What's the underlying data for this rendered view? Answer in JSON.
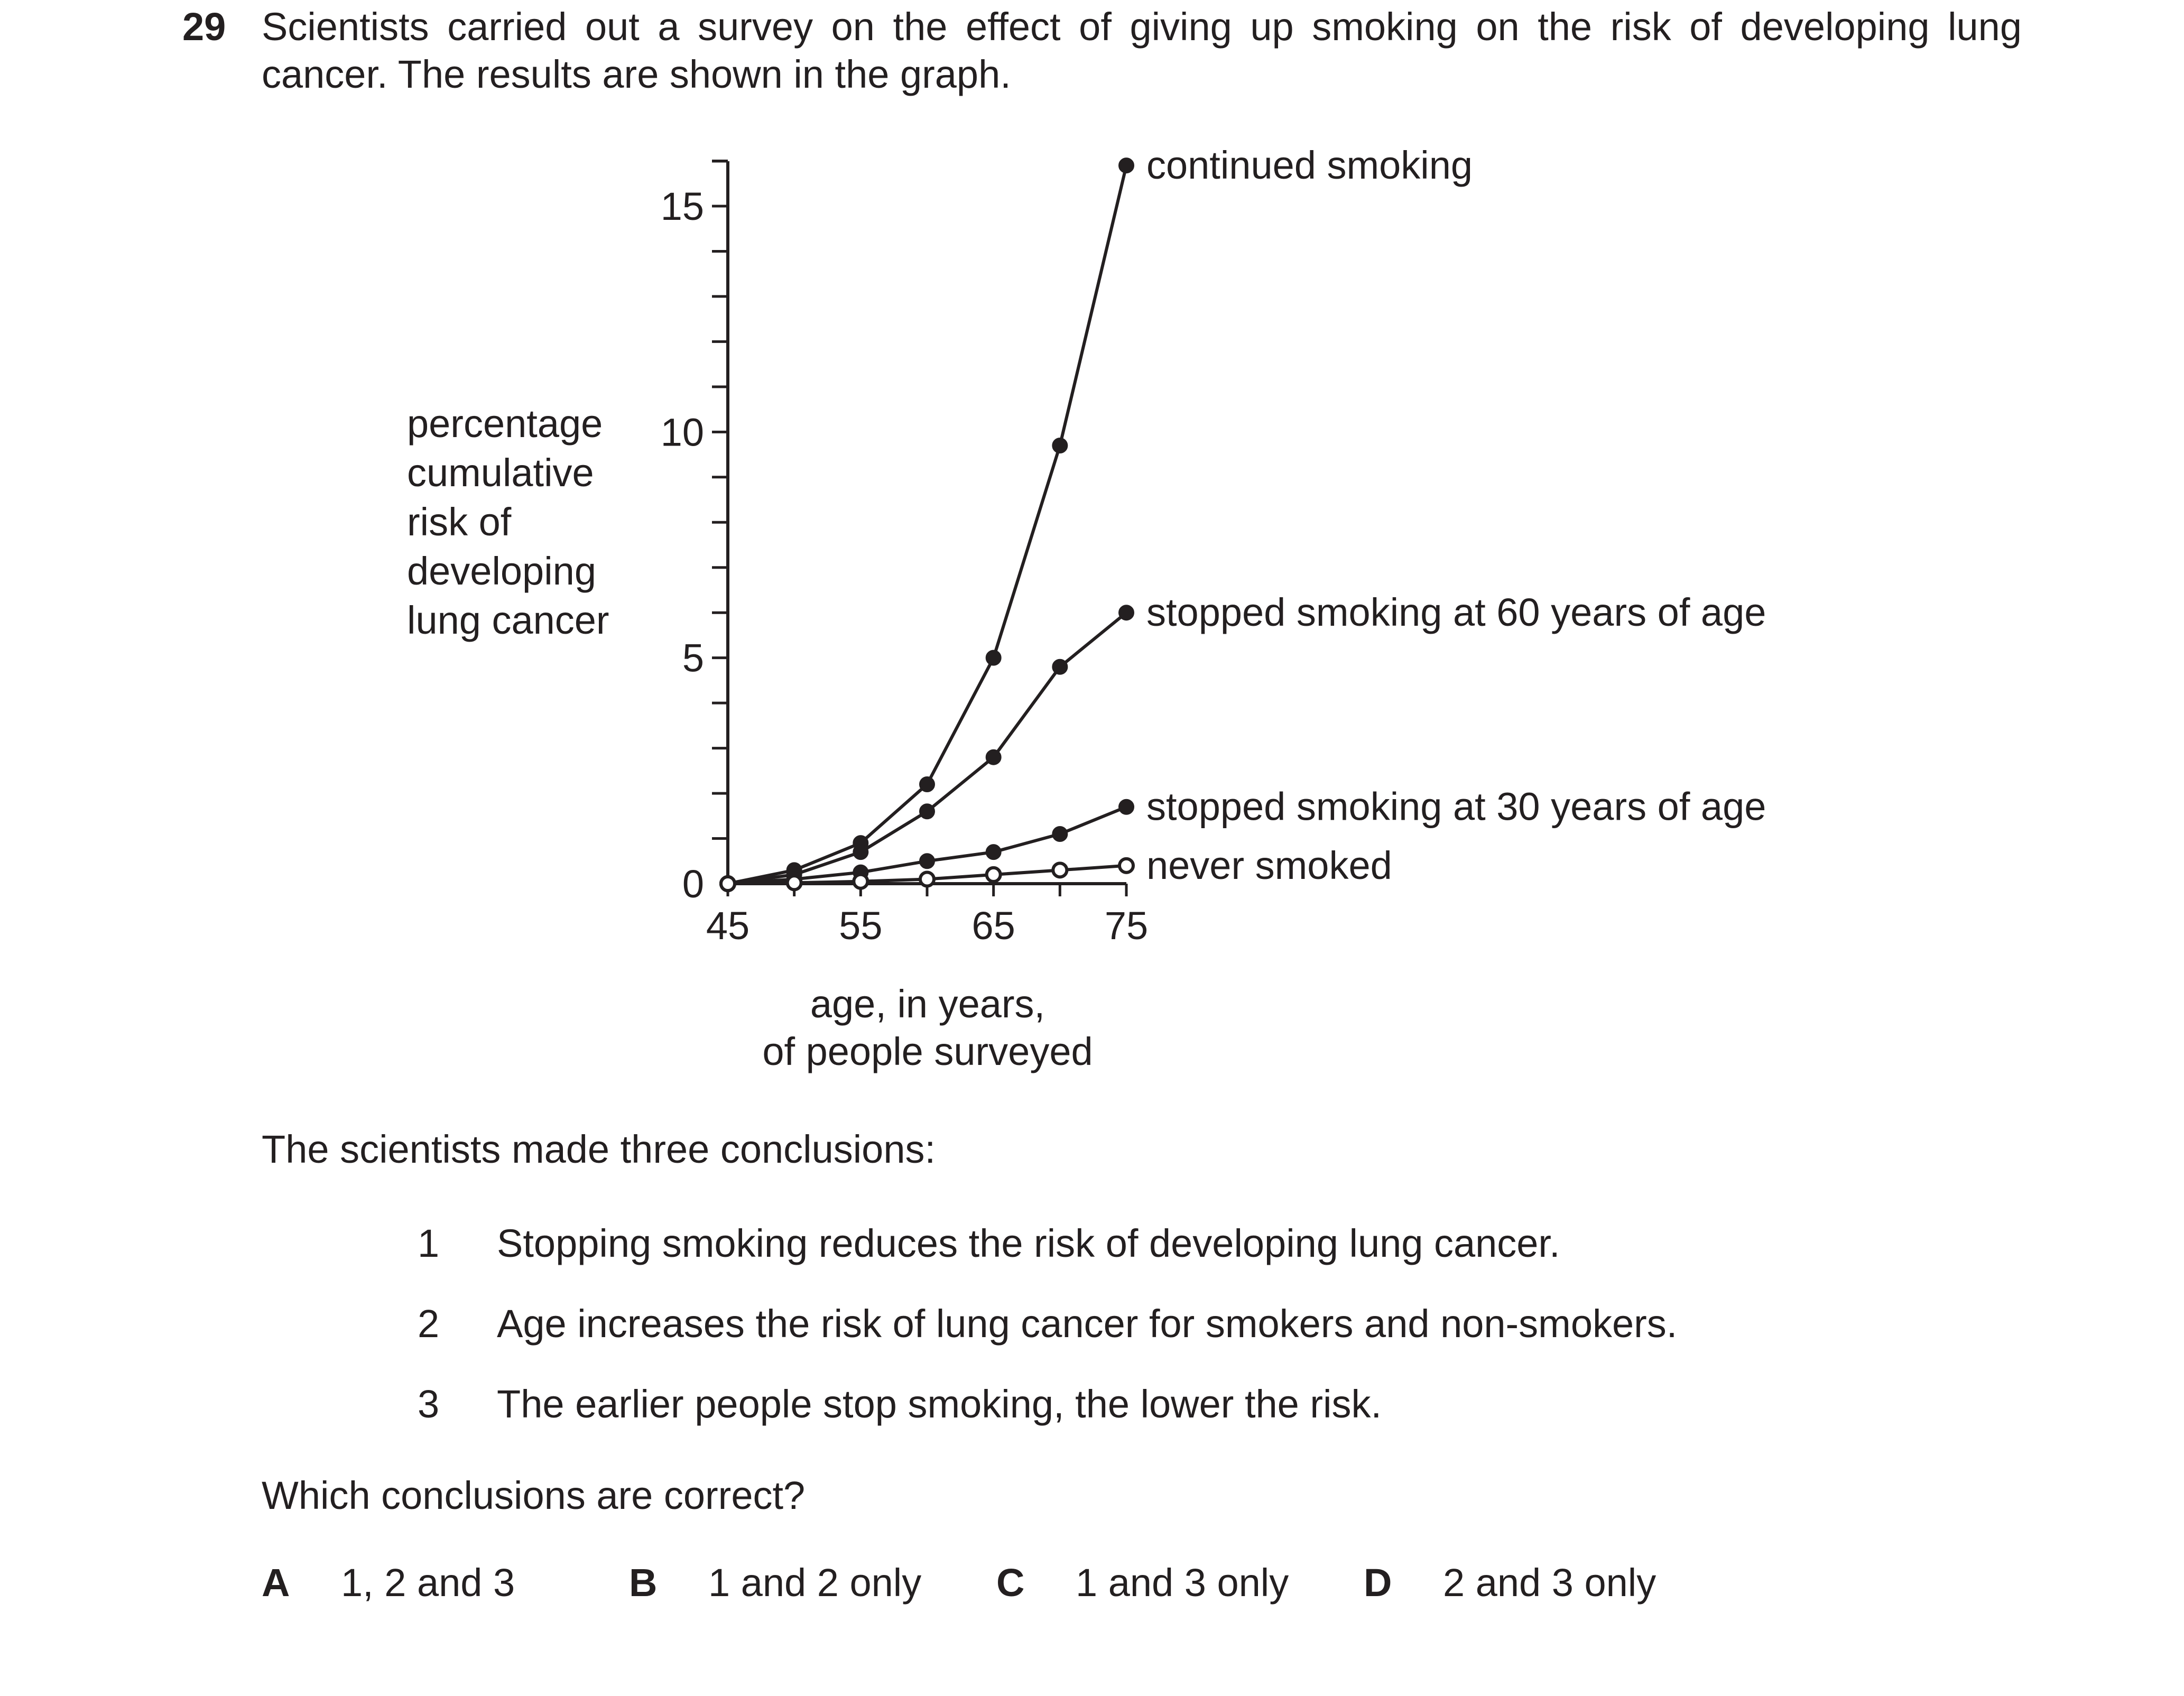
{
  "question": {
    "number": "29",
    "stem": "Scientists carried out a survey on the effect of giving up smoking on the risk of developing lung cancer. The results are shown in the graph."
  },
  "chart_data": {
    "type": "line",
    "ylabel": [
      "percentage",
      "cumulative",
      "risk of",
      "developing",
      "lung cancer"
    ],
    "xlabel": [
      "age, in years,",
      "of people surveyed"
    ],
    "xlim": [
      45,
      75
    ],
    "ylim": [
      0,
      16
    ],
    "xticks": [
      45,
      55,
      65,
      75
    ],
    "yticks": [
      0,
      5,
      10,
      15
    ],
    "x": [
      45,
      50,
      55,
      60,
      65,
      70,
      75
    ],
    "series": [
      {
        "name": "continued smoking",
        "marker": "filled",
        "values": [
          0,
          0.3,
          0.9,
          2.2,
          5.0,
          9.7,
          15.9
        ]
      },
      {
        "name": "stopped smoking at 60 years of age",
        "marker": "filled",
        "values": [
          0,
          0.2,
          0.7,
          1.6,
          2.8,
          4.8,
          6.0
        ]
      },
      {
        "name": "stopped smoking at 30 years of age",
        "marker": "filled",
        "values": [
          0,
          0.1,
          0.25,
          0.5,
          0.7,
          1.1,
          1.7
        ]
      },
      {
        "name": "never smoked",
        "marker": "open",
        "values": [
          0,
          0.02,
          0.05,
          0.1,
          0.2,
          0.3,
          0.4
        ]
      }
    ],
    "grid": false,
    "legend": "inline labels at line ends"
  },
  "conclusions": {
    "intro": "The scientists made three conclusions:",
    "items": [
      {
        "num": "1",
        "text": "Stopping smoking reduces the risk of developing lung cancer."
      },
      {
        "num": "2",
        "text": "Age increases the risk of lung cancer for smokers and non-smokers."
      },
      {
        "num": "3",
        "text": "The earlier people stop smoking, the lower the risk."
      }
    ]
  },
  "prompt": "Which conclusions are correct?",
  "options": [
    {
      "letter": "A",
      "text": "1, 2 and 3"
    },
    {
      "letter": "B",
      "text": "1 and 2 only"
    },
    {
      "letter": "C",
      "text": "1 and 3 only"
    },
    {
      "letter": "D",
      "text": "2 and 3 only"
    }
  ]
}
